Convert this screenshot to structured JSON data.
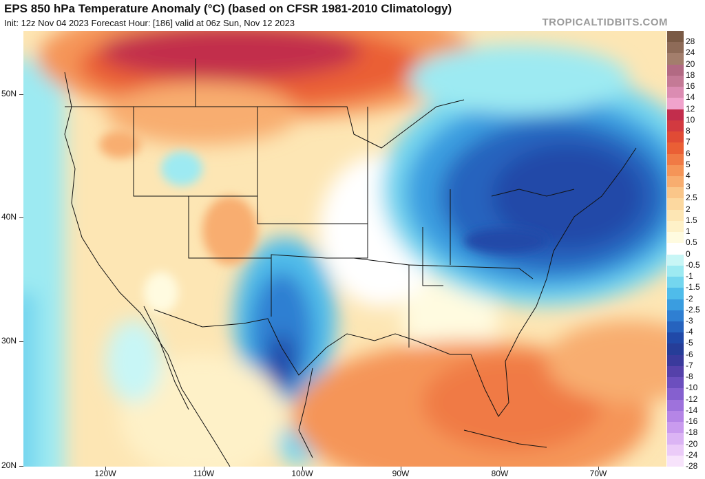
{
  "header": {
    "title": "EPS 850 hPa Temperature Anomaly (°C) (based on CFSR 1981-2010 Climatology)",
    "subtitle": "Init: 12z Nov 04 2023   Forecast Hour: [186]   valid at 06z Sun, Nov 12 2023",
    "site": "TROPICALTIDBITS.COM"
  },
  "axes": {
    "lat_labels": [
      "50N",
      "40N",
      "30N",
      "20N"
    ],
    "lon_labels": [
      "120W",
      "110W",
      "100W",
      "90W",
      "80W",
      "70W"
    ]
  },
  "colorbar": {
    "levels": [
      {
        "label": "28",
        "color": "#7a5a45"
      },
      {
        "label": "24",
        "color": "#8e6b58"
      },
      {
        "label": "20",
        "color": "#a37e6c"
      },
      {
        "label": "18",
        "color": "#b26a83"
      },
      {
        "label": "16",
        "color": "#c47a96"
      },
      {
        "label": "14",
        "color": "#db8cb2"
      },
      {
        "label": "12",
        "color": "#f0a3cc"
      },
      {
        "label": "10",
        "color": "#c22d4c"
      },
      {
        "label": "8",
        "color": "#d23a40"
      },
      {
        "label": "7",
        "color": "#e04b35"
      },
      {
        "label": "6",
        "color": "#ea5f35"
      },
      {
        "label": "5",
        "color": "#f07a45"
      },
      {
        "label": "4",
        "color": "#f59558"
      },
      {
        "label": "3",
        "color": "#f8ad6f"
      },
      {
        "label": "2.5",
        "color": "#fac689"
      },
      {
        "label": "2",
        "color": "#fcd89f"
      },
      {
        "label": "1.5",
        "color": "#fde6b4"
      },
      {
        "label": "1",
        "color": "#fef1c8"
      },
      {
        "label": "0.5",
        "color": "#fffbe0"
      },
      {
        "label": "0",
        "color": "#ffffff"
      },
      {
        "label": "-0.5",
        "color": "#c8f6f6"
      },
      {
        "label": "-1",
        "color": "#9deaf2"
      },
      {
        "label": "-1.5",
        "color": "#74d6ef"
      },
      {
        "label": "-2",
        "color": "#4fbcea"
      },
      {
        "label": "-2.5",
        "color": "#3a9de0"
      },
      {
        "label": "-3",
        "color": "#2f7fd2"
      },
      {
        "label": "-4",
        "color": "#2663be"
      },
      {
        "label": "-5",
        "color": "#2049a8"
      },
      {
        "label": "-6",
        "color": "#263d98"
      },
      {
        "label": "-7",
        "color": "#3a3a9c"
      },
      {
        "label": "-8",
        "color": "#5541aa"
      },
      {
        "label": "-10",
        "color": "#6c4fbe"
      },
      {
        "label": "-12",
        "color": "#8560cf"
      },
      {
        "label": "-14",
        "color": "#9e72dc"
      },
      {
        "label": "-16",
        "color": "#b585e6"
      },
      {
        "label": "-18",
        "color": "#c99bee"
      },
      {
        "label": "-20",
        "color": "#dbb4f4"
      },
      {
        "label": "-24",
        "color": "#ebcbf8"
      },
      {
        "label": "-28",
        "color": "#f7e3fb"
      }
    ]
  }
}
